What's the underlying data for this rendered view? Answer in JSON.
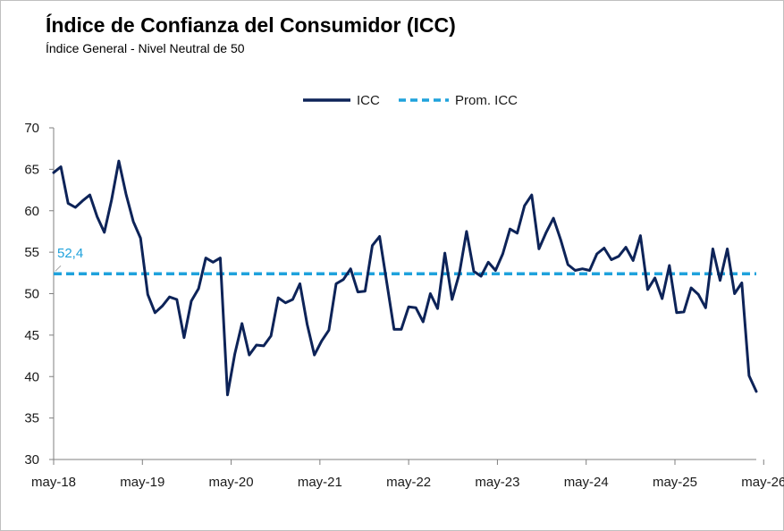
{
  "chart_data": {
    "type": "line",
    "title": "Índice de Confianza del Consumidor (ICC)",
    "subtitle": "Índice General - Nivel Neutral de 50",
    "xlabel": "",
    "ylabel": "",
    "ylim": [
      30,
      70
    ],
    "y_ticks": [
      30,
      35,
      40,
      45,
      50,
      55,
      60,
      65,
      70
    ],
    "x_tick_labels": [
      "may-18",
      "may-19",
      "may-20",
      "may-21",
      "may-22",
      "may-23",
      "may-24",
      "may-25",
      "may-26"
    ],
    "grid": false,
    "legend_position": "top-center",
    "series": [
      {
        "name": "ICC",
        "color": "#0d2358",
        "style": "solid",
        "values": [
          64.6,
          65.3,
          60.9,
          60.4,
          61.2,
          61.9,
          59.3,
          57.4,
          61.3,
          66.0,
          62.0,
          58.7,
          56.7,
          49.9,
          47.7,
          48.5,
          49.6,
          49.3,
          44.7,
          49.1,
          50.6,
          54.3,
          53.8,
          54.3,
          37.8,
          42.7,
          46.4,
          42.6,
          43.8,
          43.7,
          44.9,
          49.5,
          48.9,
          49.3,
          51.2,
          46.3,
          42.6,
          44.3,
          45.6,
          51.2,
          51.7,
          53.0,
          50.2,
          50.3,
          55.8,
          56.9,
          51.3,
          45.7,
          45.7,
          48.4,
          48.3,
          46.6,
          50.0,
          48.2,
          54.9,
          49.3,
          52.4,
          57.5,
          52.7,
          52.1,
          53.8,
          52.8,
          54.8,
          57.8,
          57.3,
          60.6,
          61.9,
          55.4,
          57.4,
          59.1,
          56.5,
          53.5,
          52.8,
          53.0,
          52.8,
          54.8,
          55.5,
          54.1,
          54.5,
          55.6,
          54.0,
          57.0,
          50.5,
          51.9,
          49.4,
          53.4,
          47.7,
          47.8,
          50.7,
          49.9,
          48.3,
          55.4,
          51.6,
          55.4,
          50.0,
          51.3,
          40.1,
          38.2
        ]
      },
      {
        "name": "Prom. ICC",
        "color": "#1fa2dc",
        "style": "dashed",
        "value": 52.4
      }
    ],
    "annotations": [
      {
        "series": "Prom. ICC",
        "text": "52,4",
        "color": "#1fa2dc"
      }
    ]
  }
}
